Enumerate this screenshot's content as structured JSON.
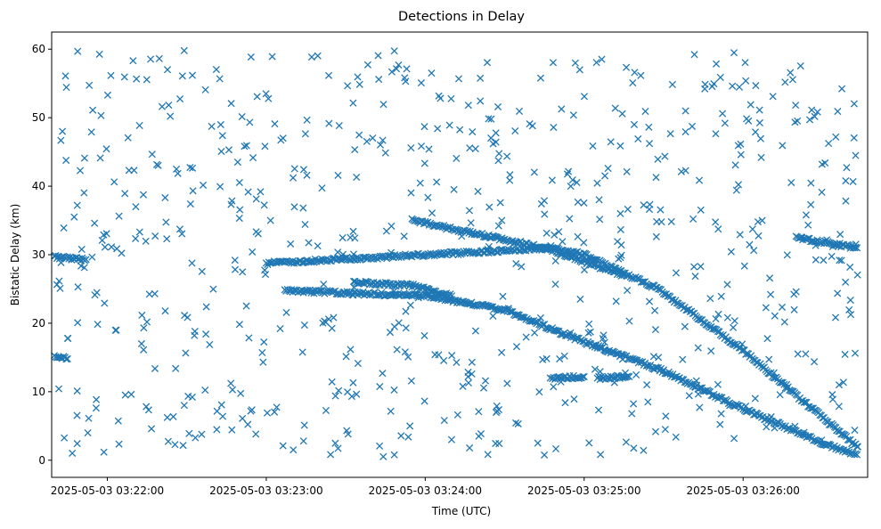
{
  "chart_data": {
    "type": "scatter",
    "title": "Detections in Delay",
    "xlabel": "Time (UTC)",
    "ylabel": "Bistatic Delay (km)",
    "x_tick_labels": [
      "2025-05-03 03:22:00",
      "2025-05-03 03:23:00",
      "2025-05-03 03:24:00",
      "2025-05-03 03:25:00",
      "2025-05-03 03:26:00"
    ],
    "y_ticks": [
      0,
      10,
      20,
      30,
      40,
      50,
      60
    ],
    "xlim": [
      "2025-05-03 03:21:39",
      "2025-05-03 03:26:47"
    ],
    "ylim": [
      -2.5,
      62.5
    ],
    "grid": false,
    "marker": "x",
    "color": "#1f77b4",
    "series": [
      {
        "tracks": [
          {
            "x": [
              "2025-05-03 03:21:40",
              "2025-05-03 03:21:52"
            ],
            "y": [
              29.7,
              29.3
            ]
          },
          {
            "x": [
              "2025-05-03 03:23:00",
              "2025-05-03 03:23:32",
              "2025-05-03 03:24:00",
              "2025-05-03 03:24:30",
              "2025-05-03 03:24:48",
              "2025-05-03 03:25:00",
              "2025-05-03 03:25:28",
              "2025-05-03 03:26:00",
              "2025-05-03 03:26:43"
            ],
            "y": [
              28.8,
              29.4,
              30.0,
              30.6,
              31.0,
              30.0,
              25.0,
              16.0,
              2.0
            ]
          },
          {
            "x": [
              "2025-05-03 03:23:07",
              "2025-05-03 03:23:30",
              "2025-05-03 03:24:00",
              "2025-05-03 03:24:30",
              "2025-05-03 03:24:55",
              "2025-05-03 03:25:30",
              "2025-05-03 03:26:00",
              "2025-05-03 03:26:30",
              "2025-05-03 03:26:43"
            ],
            "y": [
              24.8,
              24.4,
              24.0,
              22.0,
              18.0,
              13.0,
              7.5,
              2.5,
              0.8
            ]
          },
          {
            "x": [
              "2025-05-03 03:23:33",
              "2025-05-03 03:23:55",
              "2025-05-03 03:24:10"
            ],
            "y": [
              26.0,
              25.5,
              24.0
            ]
          },
          {
            "x": [
              "2025-05-03 03:23:55",
              "2025-05-03 03:24:20",
              "2025-05-03 03:24:45",
              "2025-05-03 03:25:00",
              "2025-05-03 03:25:15"
            ],
            "y": [
              35.0,
              33.0,
              31.0,
              29.0,
              27.0
            ]
          },
          {
            "x": [
              "2025-05-03 03:24:48",
              "2025-05-03 03:25:00"
            ],
            "y": [
              12.0,
              12.2
            ]
          },
          {
            "x": [
              "2025-05-03 03:25:05",
              "2025-05-03 03:25:17"
            ],
            "y": [
              12.0,
              12.2
            ]
          },
          {
            "x": [
              "2025-05-03 03:26:20",
              "2025-05-03 03:26:43"
            ],
            "y": [
              32.5,
              31.0
            ]
          },
          {
            "x": [
              "2025-05-03 03:21:40",
              "2025-05-03 03:21:45"
            ],
            "y": [
              15.2,
              14.8
            ]
          }
        ],
        "clutter": {
          "x_range": [
            "2025-05-03 03:21:40",
            "2025-05-03 03:26:44"
          ],
          "y_range": [
            0.5,
            60.0
          ],
          "count": 700
        }
      }
    ]
  }
}
